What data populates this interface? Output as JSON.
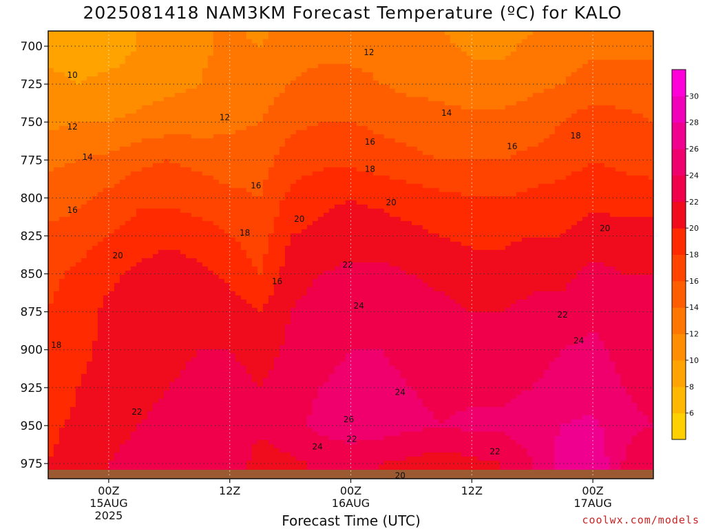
{
  "title": "2025081418 NAM3KM Forecast Temperature (ºC) for KALO",
  "credit": "coolwx.com/models",
  "chart_data": {
    "type": "heatmap",
    "title": "2025081418 NAM3KM Forecast Temperature (ºC) for KALO",
    "xlabel": "Forecast Time (UTC)",
    "ylabel": "",
    "x_ticks": [
      {
        "hour": 6,
        "lines": [
          "00Z",
          "15AUG",
          "2025"
        ]
      },
      {
        "hour": 18,
        "lines": [
          "12Z"
        ]
      },
      {
        "hour": 30,
        "lines": [
          "00Z",
          "16AUG"
        ]
      },
      {
        "hour": 42,
        "lines": [
          "12Z"
        ]
      },
      {
        "hour": 54,
        "lines": [
          "00Z",
          "17AUG"
        ]
      }
    ],
    "xlim_hours": [
      0,
      60
    ],
    "y_ticks": [
      700,
      725,
      750,
      775,
      800,
      825,
      850,
      875,
      900,
      925,
      950,
      975
    ],
    "ylim_hPa": [
      690,
      985
    ],
    "ground_level_hPa": 975,
    "grid": true,
    "colorbar": {
      "levels": [
        4,
        6,
        8,
        10,
        12,
        14,
        16,
        18,
        20,
        22,
        24,
        26,
        28,
        30,
        32
      ],
      "labels": [
        6,
        8,
        10,
        12,
        14,
        16,
        18,
        20,
        22,
        24,
        26,
        28,
        30
      ],
      "colors": [
        "#ffd000",
        "#ffb800",
        "#ffa300",
        "#ff8d00",
        "#ff7700",
        "#ff5e00",
        "#ff4400",
        "#ff2a00",
        "#f00c1c",
        "#f0004a",
        "#f0006c",
        "#f0008e",
        "#f000b8",
        "#ff00d8"
      ]
    },
    "x": [
      0,
      3,
      6,
      9,
      12,
      15,
      18,
      21,
      24,
      27,
      30,
      33,
      36,
      39,
      42,
      45,
      48,
      51,
      54,
      57,
      60
    ],
    "p": [
      690,
      700,
      725,
      750,
      775,
      800,
      825,
      850,
      875,
      900,
      925,
      950,
      975,
      985
    ],
    "temperature_C": [
      [
        9.5,
        9,
        9,
        10,
        11,
        11.5,
        12.5,
        11.5,
        13,
        13.5,
        13,
        13,
        12.5,
        12,
        11,
        11,
        12,
        12.5,
        13,
        13,
        13
      ],
      [
        9.5,
        9,
        9,
        10,
        11,
        11.5,
        12.5,
        12,
        13.5,
        13.5,
        13.5,
        13.5,
        13,
        12.5,
        11.5,
        11.5,
        12.5,
        13,
        13.5,
        13.5,
        13.5
      ],
      [
        10.5,
        10,
        10.5,
        11,
        11.5,
        12,
        13,
        13,
        14,
        14.5,
        14.5,
        14,
        13.5,
        13.5,
        13,
        13,
        13.5,
        14,
        15,
        15,
        15
      ],
      [
        11.5,
        12,
        12,
        12.5,
        13,
        13,
        13.5,
        14,
        15.5,
        16,
        16,
        15.5,
        15,
        14.5,
        14.5,
        14.5,
        15,
        16,
        17,
        16.5,
        16
      ],
      [
        13.5,
        14,
        14.5,
        15.5,
        16,
        15.5,
        15,
        15,
        17,
        17.5,
        17.5,
        17,
        16.5,
        16,
        16,
        16,
        16.5,
        17,
        18,
        17.5,
        17
      ],
      [
        15,
        15.5,
        16.5,
        17.5,
        17.5,
        17,
        16.5,
        16,
        18.5,
        19.5,
        20,
        19.5,
        19,
        18.5,
        18,
        18,
        18.5,
        19,
        19.5,
        19,
        19
      ],
      [
        16.5,
        17,
        18,
        19,
        19.5,
        19,
        18,
        17,
        20,
        20.5,
        21,
        21,
        20.5,
        20,
        19.5,
        19.5,
        20,
        20,
        21,
        21,
        21
      ],
      [
        17.5,
        18.5,
        19.5,
        20.5,
        21,
        20.5,
        19.5,
        18,
        21,
        22,
        22.5,
        22.5,
        22,
        21.5,
        21,
        21,
        21.5,
        21.5,
        22.5,
        22,
        22
      ],
      [
        18,
        19,
        20.5,
        21,
        21.5,
        21.5,
        21,
        20,
        22,
        23,
        23.5,
        23.5,
        23,
        22.5,
        22,
        22,
        22.5,
        22.5,
        23.5,
        23,
        23
      ],
      [
        18,
        19.5,
        20.5,
        21,
        21.5,
        22,
        22,
        21,
        22.5,
        23.5,
        24,
        24,
        23.5,
        23,
        22.5,
        22.5,
        23.5,
        24,
        24.5,
        23.5,
        23
      ],
      [
        18.5,
        20,
        21,
        21.5,
        22,
        22.5,
        23,
        22,
        23,
        24,
        24.5,
        24.5,
        24,
        23.5,
        23.5,
        23.5,
        24,
        24.5,
        25,
        24,
        23.5
      ],
      [
        19.5,
        20.5,
        21.5,
        22,
        22.5,
        23,
        23.5,
        22.5,
        23.5,
        24.5,
        25,
        25,
        24.5,
        24,
        24.5,
        24.5,
        25,
        26,
        26.5,
        24.5,
        24
      ],
      [
        20,
        21,
        22,
        22.5,
        23,
        23.5,
        23.5,
        21,
        21.5,
        22.5,
        23,
        22,
        21.5,
        21,
        21.5,
        22,
        24,
        27,
        28,
        24,
        22
      ],
      [
        20,
        21,
        22,
        22.5,
        23,
        23.5,
        23.5,
        21,
        21.5,
        22.5,
        23,
        22,
        21.5,
        21,
        21.5,
        22,
        24,
        27,
        28,
        24,
        22
      ]
    ],
    "contour_labels": [
      {
        "text": "10",
        "x": 2.4,
        "p": 719
      },
      {
        "text": "12",
        "x": 2.4,
        "p": 753
      },
      {
        "text": "14",
        "x": 3.9,
        "p": 773
      },
      {
        "text": "16",
        "x": 2.4,
        "p": 808
      },
      {
        "text": "18",
        "x": 0.8,
        "p": 897
      },
      {
        "text": "20",
        "x": 6.9,
        "p": 838
      },
      {
        "text": "22",
        "x": 8.8,
        "p": 941
      },
      {
        "text": "12",
        "x": 17.5,
        "p": 747
      },
      {
        "text": "16",
        "x": 20.6,
        "p": 792
      },
      {
        "text": "18",
        "x": 19.5,
        "p": 823
      },
      {
        "text": "16",
        "x": 22.7,
        "p": 855
      },
      {
        "text": "20",
        "x": 24.9,
        "p": 814
      },
      {
        "text": "22",
        "x": 29.7,
        "p": 844
      },
      {
        "text": "24",
        "x": 30.8,
        "p": 871
      },
      {
        "text": "24",
        "x": 26.7,
        "p": 964
      },
      {
        "text": "26",
        "x": 29.8,
        "p": 946
      },
      {
        "text": "22",
        "x": 30.1,
        "p": 959
      },
      {
        "text": "12",
        "x": 31.8,
        "p": 704
      },
      {
        "text": "16",
        "x": 31.9,
        "p": 763
      },
      {
        "text": "18",
        "x": 31.9,
        "p": 781
      },
      {
        "text": "20",
        "x": 34.0,
        "p": 803
      },
      {
        "text": "24",
        "x": 34.9,
        "p": 928
      },
      {
        "text": "20",
        "x": 34.9,
        "p": 983
      },
      {
        "text": "14",
        "x": 39.5,
        "p": 744
      },
      {
        "text": "16",
        "x": 46.0,
        "p": 766
      },
      {
        "text": "22",
        "x": 44.3,
        "p": 967
      },
      {
        "text": "18",
        "x": 52.3,
        "p": 759
      },
      {
        "text": "20",
        "x": 55.2,
        "p": 820
      },
      {
        "text": "22",
        "x": 51.0,
        "p": 877
      },
      {
        "text": "24",
        "x": 52.6,
        "p": 894
      }
    ]
  }
}
